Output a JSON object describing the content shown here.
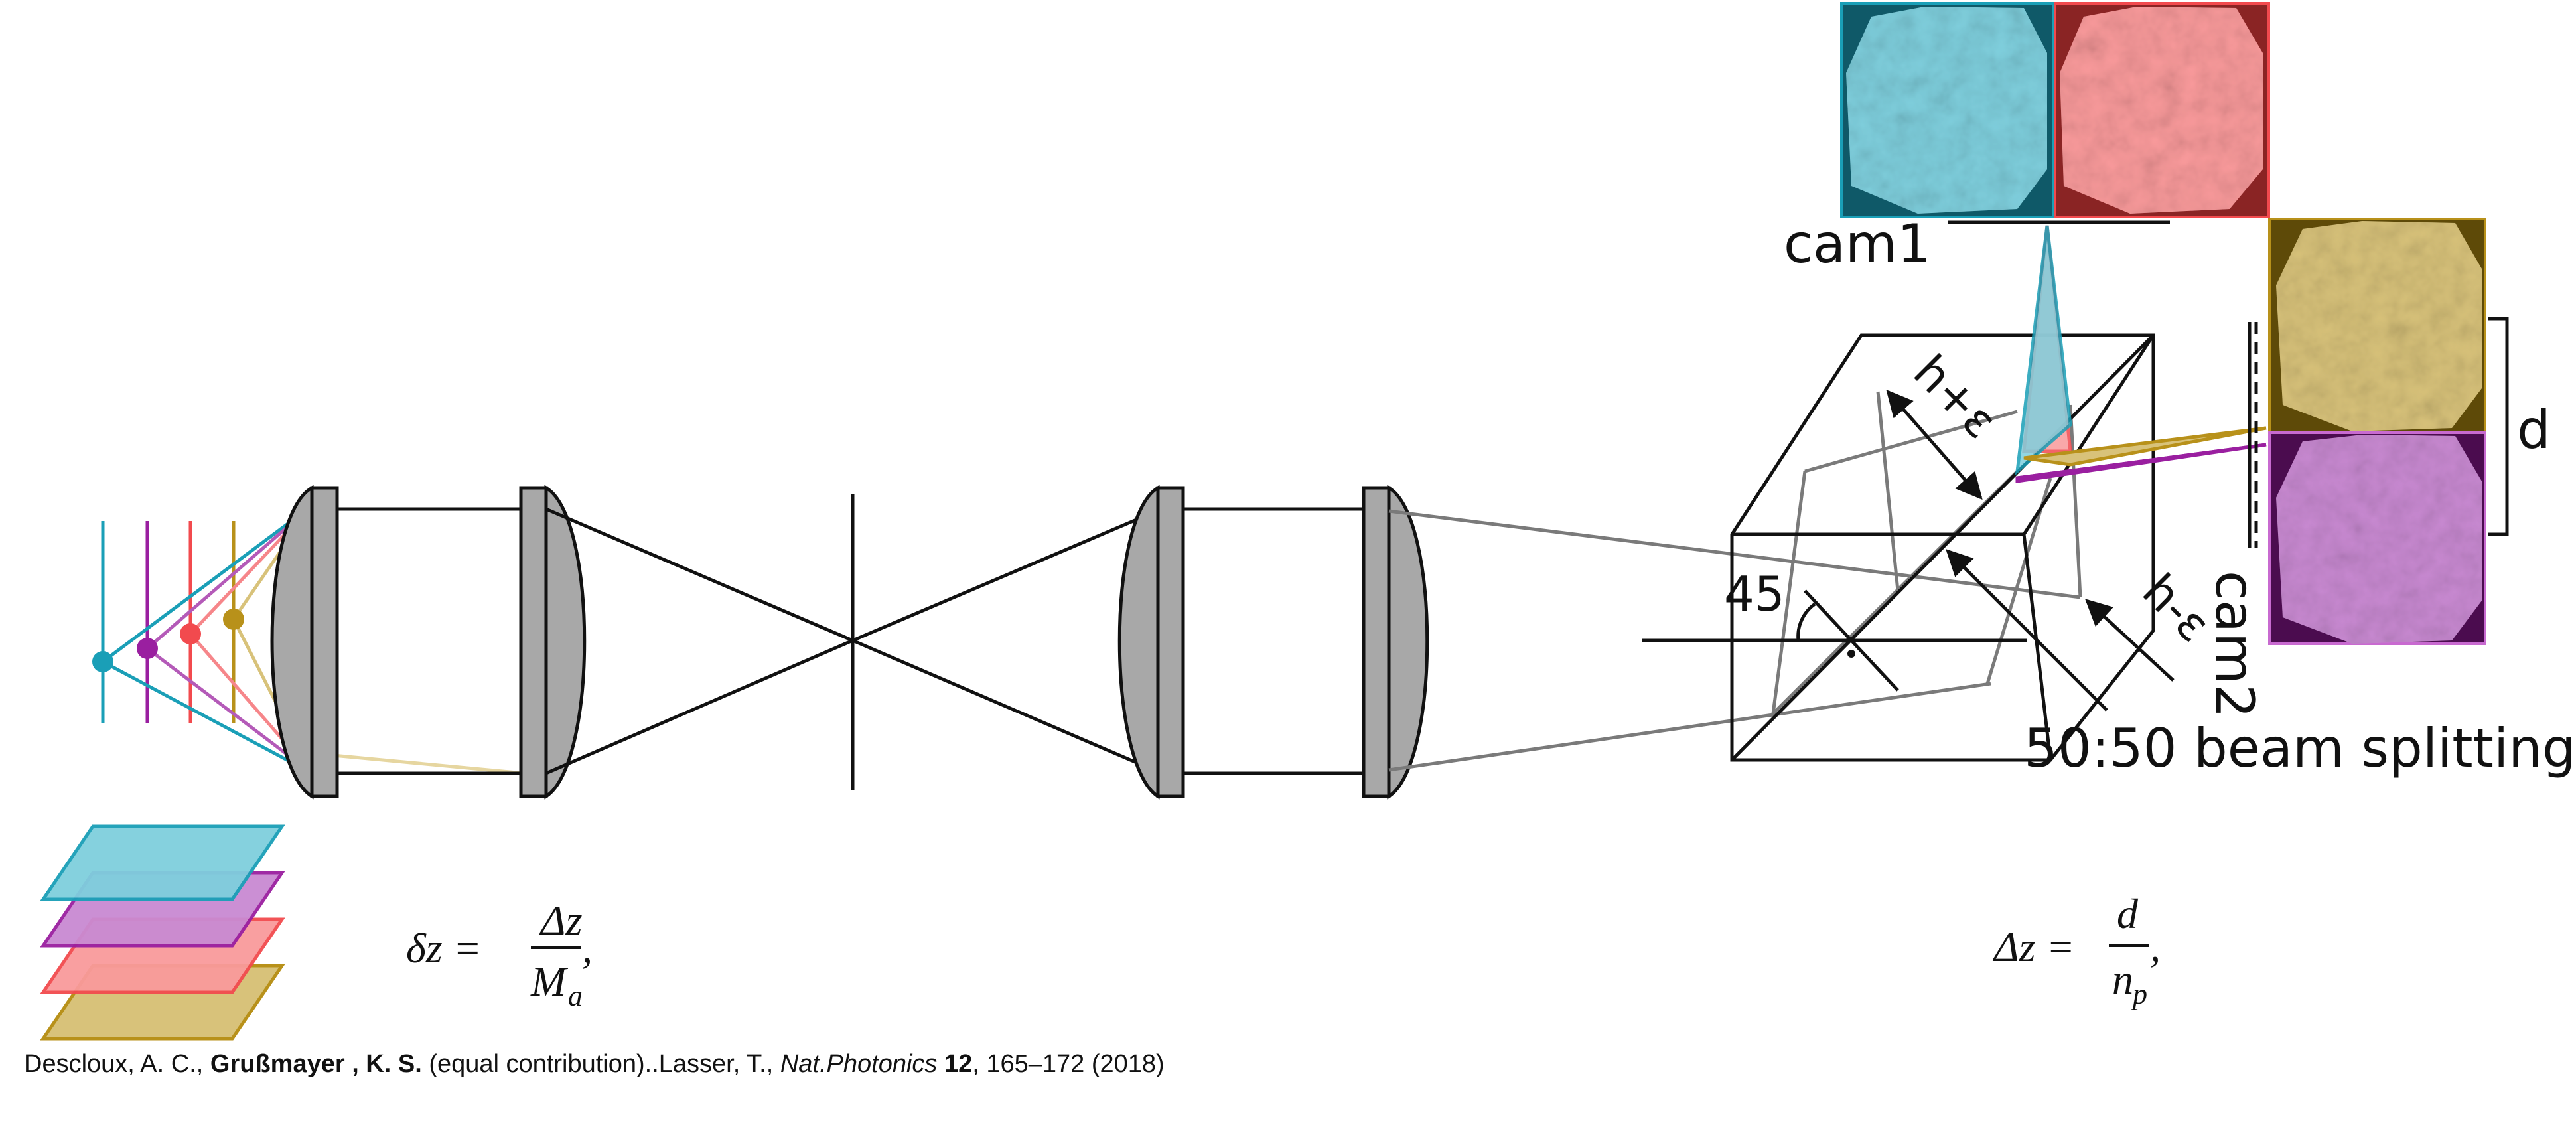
{
  "colors": {
    "cyan": "#1a9fb7",
    "purple": "#9a1fa0",
    "red": "#f24a4e",
    "gold": "#b8911a",
    "cyan_fill": "#7fcfdd",
    "purple_fill": "#c98ad2",
    "red_fill": "#f99a9b",
    "gold_fill": "#d8c27a",
    "lens_gray": "#a8a8a8",
    "ray_gray": "#7a7a7a",
    "cam_cyan_bg": "#0f5968",
    "cam_red_bg": "#8a2424",
    "cam_gold_bg": "#5e4a08",
    "cam_purple_bg": "#4b0c4f"
  },
  "labels": {
    "cam1": "cam1",
    "cam2": "cam2",
    "d": "d",
    "angle": "45",
    "h_plus": "h+ε",
    "h_minus": "h-ε",
    "beam_splitting": "50:50 beam splitting"
  },
  "equations": {
    "left": {
      "lhs": "δz =",
      "numerator": "Δz",
      "denominator": "M",
      "denominator_sub": "a",
      "trail": ","
    },
    "right": {
      "lhs": "Δz =",
      "numerator": "d",
      "denominator": "n",
      "denominator_sub": "p",
      "trail": ","
    }
  },
  "citation": {
    "authors_1": "Descloux, A. C., ",
    "author_bold": "Grußmayer , K. S.",
    "authors_2": " (equal contribution)..Lasser, T., ",
    "journal": "Nat.Photonics",
    "space": " ",
    "volume": "12",
    "pages": ", 165–172 (2018)"
  },
  "icons": [
    "lens-icon",
    "stop-icon",
    "prism-icon",
    "camera-image-icon",
    "focal-plane-icon"
  ]
}
